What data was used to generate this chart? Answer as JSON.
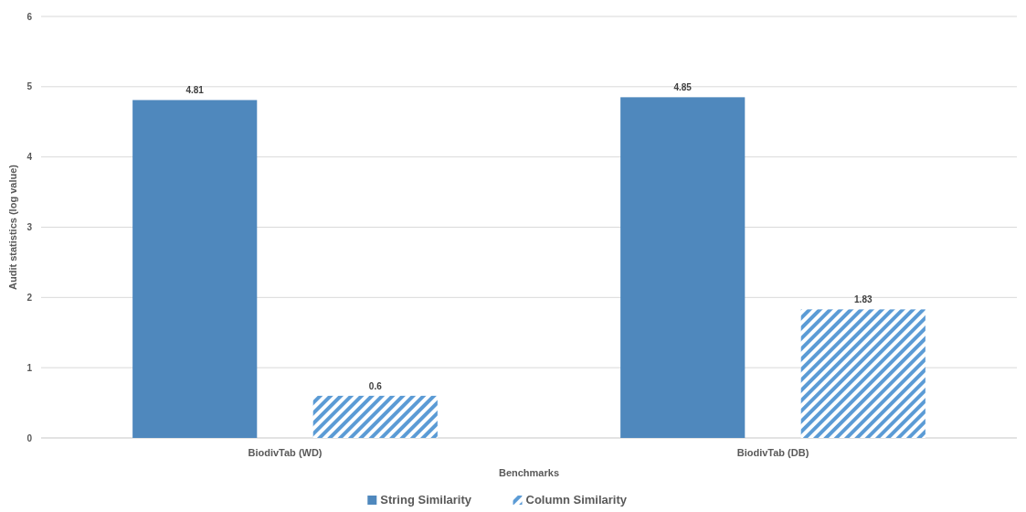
{
  "chart_data": {
    "type": "bar",
    "xlabel": "Benchmarks",
    "ylabel": "Audit statistics (log value)",
    "categories": [
      "BiodivTab (WD)",
      "BiodivTab (DB)"
    ],
    "series": [
      {
        "name": "String Similarity",
        "color": "#4f88bd",
        "values": [
          4.81,
          4.85
        ]
      },
      {
        "name": "Column Similarity",
        "color": "#5b9bd5",
        "values": [
          0.6,
          1.83
        ]
      }
    ],
    "ylim": [
      0,
      6
    ],
    "yticks": [
      0,
      1,
      2,
      3,
      4,
      5,
      6
    ],
    "grid": "y",
    "legend": "bottom",
    "data_labels": true
  }
}
